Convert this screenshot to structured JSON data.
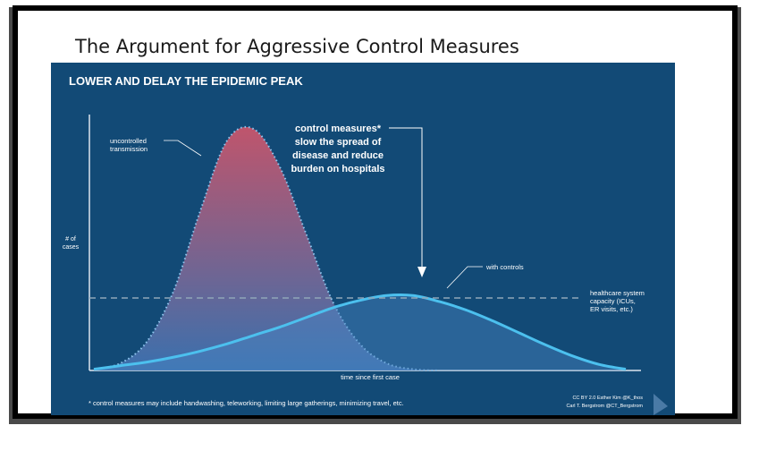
{
  "slide": {
    "title": "The Argument for Aggressive Control Measures"
  },
  "chart_data": {
    "type": "area",
    "title": "LOWER AND DELAY THE EPIDEMIC PEAK",
    "xlabel": "time since first case",
    "ylabel": "# of cases",
    "x": [
      0,
      1,
      2,
      3,
      4,
      5,
      6,
      7,
      8,
      9,
      10,
      11,
      12,
      13,
      14,
      15,
      16,
      17,
      18,
      19,
      20
    ],
    "series": [
      {
        "name": "uncontrolled transmission",
        "values": [
          0.5,
          3,
          12,
          33,
          66,
          95,
          100,
          84,
          56,
          28,
          11,
          3,
          0.5,
          0,
          0,
          0,
          0,
          0,
          0,
          0,
          0
        ],
        "color": "#d2566b",
        "fill_bottom": "#3f74b3"
      },
      {
        "name": "with controls",
        "values": [
          0.5,
          2,
          3.5,
          5.5,
          8,
          11,
          14.5,
          18,
          22,
          26,
          29,
          31,
          31,
          28.5,
          25,
          20.5,
          15.5,
          10.5,
          6,
          2.5,
          0.5
        ],
        "color": "#4cc0ee"
      }
    ],
    "capacity_line": {
      "label": "healthcare system capacity (ICUs, ER visits, etc.)",
      "value": 30
    },
    "annotations": {
      "control_measures": "control measures* slow the spread of disease and reduce burden on hospitals",
      "uncontrolled": "uncontrolled transmission",
      "with_controls": "with controls"
    },
    "footnote": "* control measures may include handwashing, teleworking, limiting large gatherings, minimizing travel, etc.",
    "credit_line_1": "CC BY 2.0 Esther Kim @K_thos",
    "credit_line_2": "Carl T. Bergstrom @CT_Bergstrom",
    "ylim": [
      0,
      100
    ],
    "grid": false,
    "colors": {
      "background": "#124a76",
      "capacity": "#8fa6b8"
    }
  }
}
